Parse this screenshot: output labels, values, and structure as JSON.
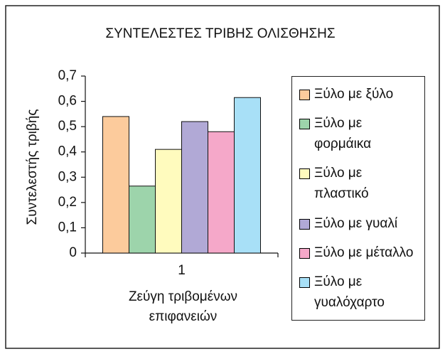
{
  "chart_data": {
    "type": "bar",
    "title": "ΣΥΝΤΕΛΕΣΤΕΣ ΤΡΙΒΗΣ ΟΛΙΣΘΗΣΗΣ",
    "xlabel": "Ζεύγη τριβομένων επιφανειών",
    "ylabel": "Συντελεστής τριβής",
    "categories": [
      "1"
    ],
    "series": [
      {
        "name": "Ξύλο με ξύλο",
        "color": "#fccb9c",
        "values": [
          0.54
        ]
      },
      {
        "name": "Ξύλο με φορμάικα",
        "color": "#9dd4ab",
        "values": [
          0.265
        ]
      },
      {
        "name": "Ξύλο με πλαστικό",
        "color": "#fffbbe",
        "values": [
          0.41
        ]
      },
      {
        "name": "Ξύλο με γυαλί",
        "color": "#b1a9d6",
        "values": [
          0.52
        ]
      },
      {
        "name": "Ξύλο με μέταλλο",
        "color": "#f5a8c9",
        "values": [
          0.48
        ]
      },
      {
        "name": "Ξύλο με γυαλόχαρτο",
        "color": "#a8e0f7",
        "values": [
          0.615
        ]
      }
    ],
    "ylim": [
      0,
      0.7
    ],
    "yticks": [
      0,
      {
        "value": 0.1,
        "label": "0,1"
      },
      {
        "value": 0.2,
        "label": "0,2"
      },
      {
        "value": 0.3,
        "label": "0,3"
      },
      {
        "value": 0.4,
        "label": "0,4"
      },
      {
        "value": 0.5,
        "label": "0,5"
      },
      {
        "value": 0.6,
        "label": "0,6"
      },
      {
        "value": 0.7,
        "label": "0,7"
      }
    ],
    "legend": "right"
  }
}
